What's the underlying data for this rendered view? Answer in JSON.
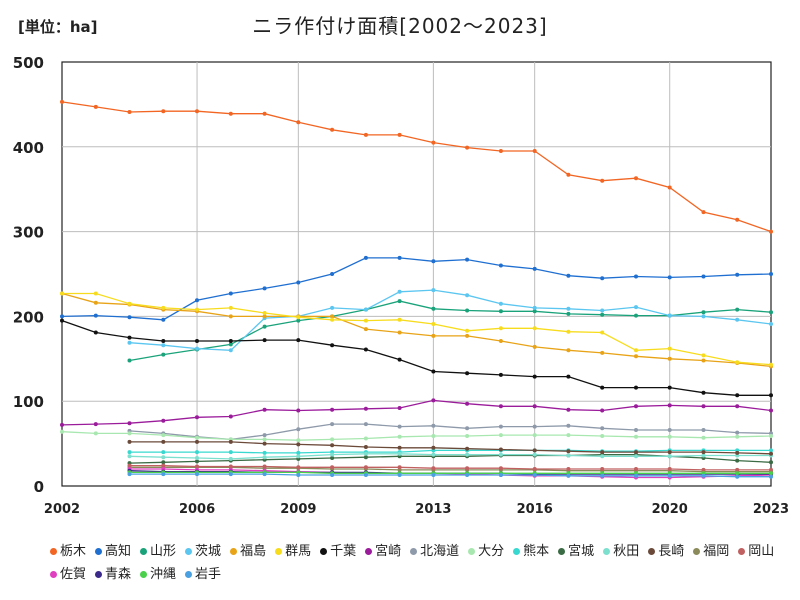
{
  "header": {
    "unit": "[単位：ha]",
    "title": "ニラ作付け面積[2002〜2023]"
  },
  "chart_data": {
    "type": "line",
    "title": "ニラ作付け面積[2002〜2023]",
    "unit": "[単位：ha]",
    "xlim": [
      2002,
      2023
    ],
    "ylim": [
      0,
      500
    ],
    "xticks": [
      2002,
      2006,
      2009,
      2013,
      2016,
      2020,
      2023
    ],
    "yticks": [
      0,
      100,
      200,
      300,
      400,
      500
    ],
    "grid": true,
    "legend": "bottom",
    "x": [
      2002,
      2003,
      2004,
      2005,
      2006,
      2007,
      2008,
      2009,
      2010,
      2011,
      2012,
      2013,
      2014,
      2015,
      2016,
      2017,
      2018,
      2019,
      2020,
      2021,
      2022,
      2023
    ],
    "series": [
      {
        "name": "栃木",
        "color": "#f26522",
        "values": [
          453,
          447,
          441,
          442,
          442,
          439,
          439,
          429,
          420,
          414,
          414,
          405,
          399,
          395,
          395,
          367,
          360,
          363,
          352,
          323,
          314,
          300
        ]
      },
      {
        "name": "高知",
        "color": "#1f6fd1",
        "values": [
          200,
          201,
          199,
          196,
          219,
          227,
          233,
          240,
          250,
          269,
          269,
          265,
          267,
          260,
          256,
          248,
          245,
          247,
          246,
          247,
          249,
          250
        ]
      },
      {
        "name": "山形",
        "color": "#1aa37a",
        "values": [
          null,
          null,
          148,
          155,
          161,
          167,
          188,
          195,
          200,
          208,
          218,
          209,
          207,
          206,
          206,
          203,
          202,
          201,
          201,
          205,
          208,
          205
        ]
      },
      {
        "name": "茨城",
        "color": "#5bc6f0",
        "values": [
          null,
          null,
          169,
          166,
          162,
          160,
          198,
          200,
          210,
          208,
          229,
          231,
          225,
          215,
          210,
          209,
          207,
          211,
          201,
          200,
          196,
          191
        ]
      },
      {
        "name": "福島",
        "color": "#e8a317",
        "values": [
          227,
          216,
          214,
          208,
          206,
          200,
          200,
          200,
          200,
          185,
          181,
          177,
          177,
          171,
          164,
          160,
          157,
          153,
          150,
          148,
          145,
          141
        ]
      },
      {
        "name": "群馬",
        "color": "#f7dc1e",
        "values": [
          227,
          227,
          215,
          210,
          208,
          210,
          204,
          199,
          196,
          195,
          196,
          191,
          183,
          186,
          186,
          182,
          181,
          160,
          162,
          154,
          146,
          143
        ]
      },
      {
        "name": "千葉",
        "color": "#111111",
        "values": [
          195,
          181,
          175,
          171,
          171,
          171,
          172,
          172,
          166,
          161,
          149,
          135,
          133,
          131,
          129,
          129,
          116,
          116,
          116,
          110,
          107,
          107
        ]
      },
      {
        "name": "宮崎",
        "color": "#9b1c9b",
        "values": [
          72,
          73,
          74,
          77,
          81,
          82,
          90,
          89,
          90,
          91,
          92,
          101,
          97,
          94,
          94,
          90,
          89,
          94,
          95,
          94,
          94,
          89
        ]
      },
      {
        "name": "北海道",
        "color": "#8e9aaa",
        "values": [
          null,
          null,
          65,
          62,
          58,
          55,
          60,
          67,
          73,
          73,
          70,
          71,
          68,
          70,
          70,
          71,
          68,
          66,
          66,
          66,
          63,
          62
        ]
      },
      {
        "name": "大分",
        "color": "#a8e8b0",
        "values": [
          64,
          62,
          62,
          60,
          57,
          55,
          55,
          54,
          55,
          56,
          58,
          59,
          59,
          60,
          60,
          60,
          59,
          58,
          58,
          57,
          58,
          59
        ]
      },
      {
        "name": "熊本",
        "color": "#38d8d0",
        "values": [
          null,
          null,
          40,
          40,
          40,
          40,
          39,
          39,
          40,
          40,
          40,
          42,
          42,
          42,
          42,
          42,
          41,
          41,
          42,
          42,
          42,
          42
        ]
      },
      {
        "name": "宮城",
        "color": "#3a6b44",
        "values": [
          null,
          null,
          27,
          28,
          29,
          30,
          31,
          32,
          33,
          34,
          35,
          35,
          35,
          36,
          36,
          36,
          37,
          37,
          35,
          33,
          30,
          28
        ]
      },
      {
        "name": "秋田",
        "color": "#7de0cf",
        "values": [
          null,
          null,
          35,
          34,
          33,
          32,
          34,
          35,
          37,
          38,
          38,
          37,
          37,
          37,
          37,
          36,
          35,
          35,
          35,
          36,
          36,
          36
        ]
      },
      {
        "name": "長崎",
        "color": "#6b4a3a",
        "values": [
          null,
          null,
          52,
          52,
          52,
          52,
          50,
          49,
          48,
          46,
          45,
          45,
          44,
          43,
          42,
          41,
          40,
          40,
          40,
          40,
          39,
          38
        ]
      },
      {
        "name": "福岡",
        "color": "#8a8a5a",
        "values": [
          null,
          null,
          22,
          22,
          22,
          22,
          21,
          21,
          20,
          20,
          19,
          19,
          19,
          19,
          19,
          18,
          18,
          18,
          18,
          17,
          17,
          17
        ]
      },
      {
        "name": "岡山",
        "color": "#c06060",
        "values": [
          null,
          null,
          24,
          24,
          23,
          23,
          23,
          22,
          22,
          22,
          22,
          21,
          21,
          21,
          20,
          20,
          20,
          20,
          20,
          19,
          19,
          19
        ]
      },
      {
        "name": "佐賀",
        "color": "#e040c0",
        "values": [
          null,
          null,
          20,
          20,
          19,
          19,
          18,
          17,
          16,
          15,
          15,
          15,
          14,
          13,
          12,
          12,
          11,
          10,
          10,
          11,
          12,
          13
        ]
      },
      {
        "name": "青森",
        "color": "#3c2a8a",
        "values": [
          null,
          null,
          18,
          17,
          17,
          17,
          16,
          16,
          16,
          16,
          15,
          15,
          15,
          15,
          14,
          14,
          14,
          14,
          14,
          14,
          14,
          14
        ]
      },
      {
        "name": "沖縄",
        "color": "#4ad04a",
        "values": [
          null,
          null,
          16,
          16,
          16,
          16,
          16,
          16,
          15,
          15,
          15,
          15,
          15,
          15,
          15,
          15,
          15,
          15,
          15,
          15,
          15,
          15
        ]
      },
      {
        "name": "岩手",
        "color": "#4aa0e0",
        "values": [
          null,
          null,
          14,
          14,
          14,
          14,
          14,
          13,
          13,
          13,
          13,
          13,
          13,
          13,
          13,
          12,
          12,
          12,
          12,
          12,
          11,
          11
        ]
      }
    ]
  }
}
